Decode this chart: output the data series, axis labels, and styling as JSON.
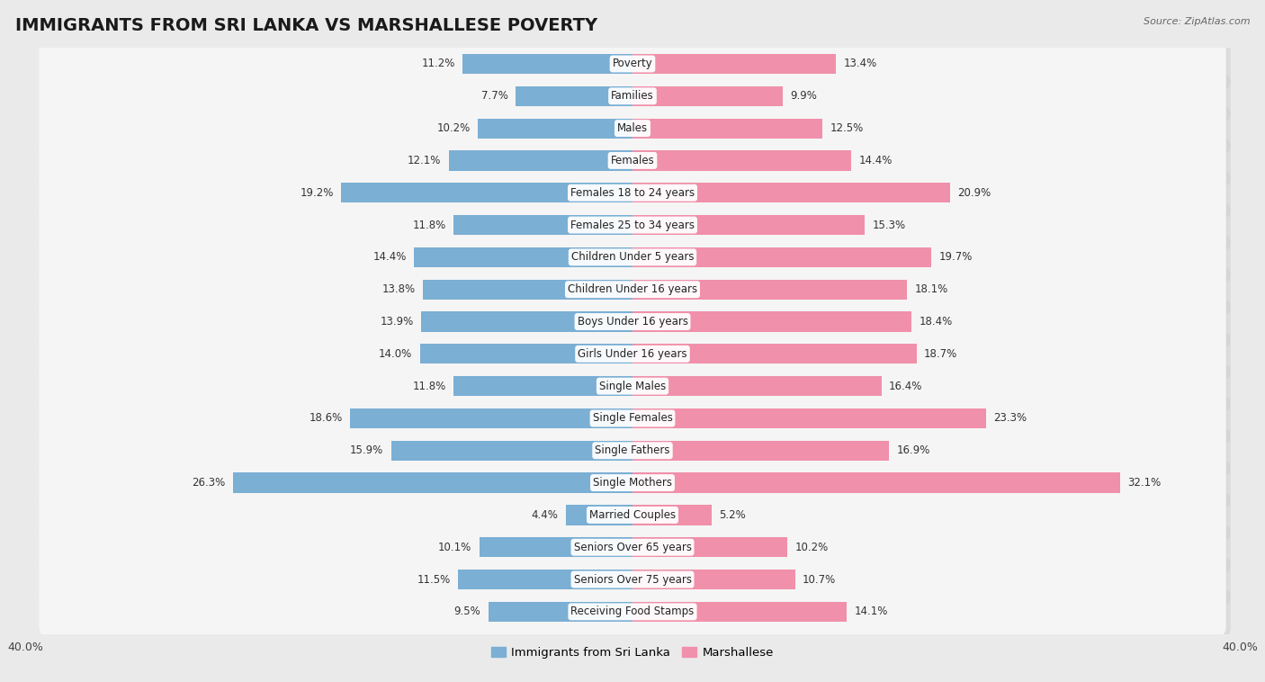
{
  "title": "IMMIGRANTS FROM SRI LANKA VS MARSHALLESE POVERTY",
  "source": "Source: ZipAtlas.com",
  "categories": [
    "Poverty",
    "Families",
    "Males",
    "Females",
    "Females 18 to 24 years",
    "Females 25 to 34 years",
    "Children Under 5 years",
    "Children Under 16 years",
    "Boys Under 16 years",
    "Girls Under 16 years",
    "Single Males",
    "Single Females",
    "Single Fathers",
    "Single Mothers",
    "Married Couples",
    "Seniors Over 65 years",
    "Seniors Over 75 years",
    "Receiving Food Stamps"
  ],
  "sri_lanka": [
    11.2,
    7.7,
    10.2,
    12.1,
    19.2,
    11.8,
    14.4,
    13.8,
    13.9,
    14.0,
    11.8,
    18.6,
    15.9,
    26.3,
    4.4,
    10.1,
    11.5,
    9.5
  ],
  "marshallese": [
    13.4,
    9.9,
    12.5,
    14.4,
    20.9,
    15.3,
    19.7,
    18.1,
    18.4,
    18.7,
    16.4,
    23.3,
    16.9,
    32.1,
    5.2,
    10.2,
    10.7,
    14.1
  ],
  "sri_lanka_color": "#7bafd4",
  "marshallese_color": "#f090aa",
  "background_color": "#eaeaea",
  "bar_row_color": "#f5f5f5",
  "bar_row_shadow": "#d0d0d0",
  "axis_max": 40.0,
  "legend_sri_lanka": "Immigrants from Sri Lanka",
  "legend_marshallese": "Marshallese",
  "title_fontsize": 14,
  "label_fontsize": 8.5,
  "value_fontsize": 8.5
}
